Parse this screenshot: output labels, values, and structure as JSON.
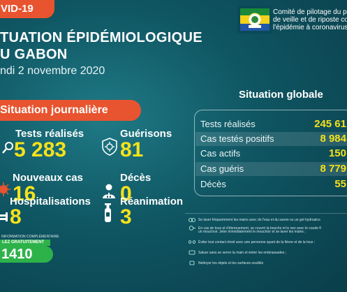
{
  "header": {
    "covid_tag": "VID-19",
    "title_line1": "TUATION ÉPIDÉMIOLOGIQUE",
    "title_line2": "U GABON",
    "date": "ndi 2 novembre 2020",
    "committee": [
      "Comité de pilotage du p",
      "de veille et de riposte co",
      "l'épidémie à coronavirus"
    ]
  },
  "daily": {
    "heading": "Situation journalière",
    "tests": {
      "label": "Tests réalisés",
      "value": "5 283",
      "icon": "magnifier-icon"
    },
    "recoveries": {
      "label": "Guérisons",
      "value": "81",
      "icon": "virus-shield-icon"
    },
    "new_cases": {
      "label": "Nouveaux cas",
      "value": "16",
      "icon": "virus-icon"
    },
    "deaths": {
      "label": "Décès",
      "value": "0",
      "icon": "person-icon"
    },
    "hospitalisations": {
      "label": "Hospitalisations",
      "value": "8",
      "icon": "bed-icon"
    },
    "icu": {
      "label": "Réanimation",
      "value": "3",
      "icon": "oxygen-tank-icon"
    }
  },
  "hotline": {
    "small_text": "INFORMATION COMPLÉMENTAIRE",
    "badge": "LEZ GRATUITEMENT",
    "number": "1410"
  },
  "global": {
    "title": "Situation globale",
    "rows": [
      {
        "label": "Tests réalisés",
        "value": "245 61"
      },
      {
        "label": "Cas testés positifs",
        "value": "8 984"
      },
      {
        "label": "Cas actifs",
        "value": "150"
      },
      {
        "label": "Cas guéris",
        "value": "8 779"
      },
      {
        "label": "Décès",
        "value": "55"
      }
    ]
  },
  "tips": [
    "Se laver fréquemment les mains avec de l'eau et du savon ou un gel hydroalco",
    "En cas de toux et d'éternuement, se couvrir la bouche et le nez avec le coude fl",
    "un mouchoir. Jeter immédiatement le mouchoir et se laver les mains ;",
    "Éviter tout contact étroit avec une personne ayant de la fièvre et de la toux ;",
    "Saluer sans se serrer la main et éviter les embrassades ;",
    "Nettoyer les objets et les surfaces souillés"
  ],
  "colors": {
    "accent": "#e8542f",
    "value": "#f5e21a",
    "hotline": "#2db24a"
  }
}
